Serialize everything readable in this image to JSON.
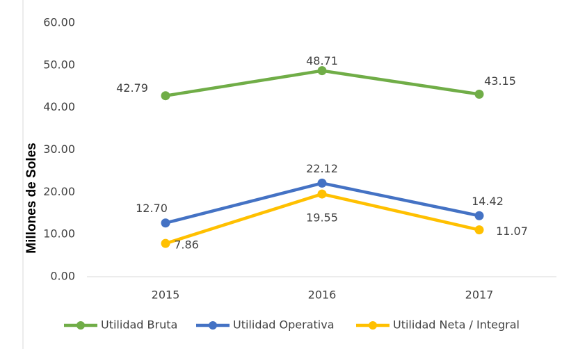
{
  "chart_data": {
    "type": "line",
    "y_label": "Millones de Soles",
    "categories": [
      "2015",
      "2016",
      "2017"
    ],
    "series": [
      {
        "name": "Utilidad Bruta",
        "color": "#70ad47",
        "values": [
          42.79,
          48.71,
          43.15
        ],
        "value_labels": [
          "42.79",
          "48.71",
          "43.15"
        ]
      },
      {
        "name": "Utilidad Operativa",
        "color": "#4472c4",
        "values": [
          12.7,
          22.12,
          14.42
        ],
        "value_labels": [
          "12.70",
          "22.12",
          "14.42"
        ]
      },
      {
        "name": "Utilidad Neta / Integral",
        "color": "#ffc000",
        "values": [
          7.86,
          19.55,
          11.07
        ],
        "value_labels": [
          "7.86",
          "19.55",
          "11.07"
        ]
      }
    ],
    "ylim": [
      0,
      60
    ],
    "yticks": [
      {
        "value": 0,
        "label": "0.00"
      },
      {
        "value": 10,
        "label": "10.00"
      },
      {
        "value": 20,
        "label": "20.00"
      },
      {
        "value": 30,
        "label": "30.00"
      },
      {
        "value": 40,
        "label": "40.00"
      },
      {
        "value": 50,
        "label": "50.00"
      },
      {
        "value": 60,
        "label": "60.00"
      }
    ],
    "grid": false,
    "legend": "bottom"
  }
}
